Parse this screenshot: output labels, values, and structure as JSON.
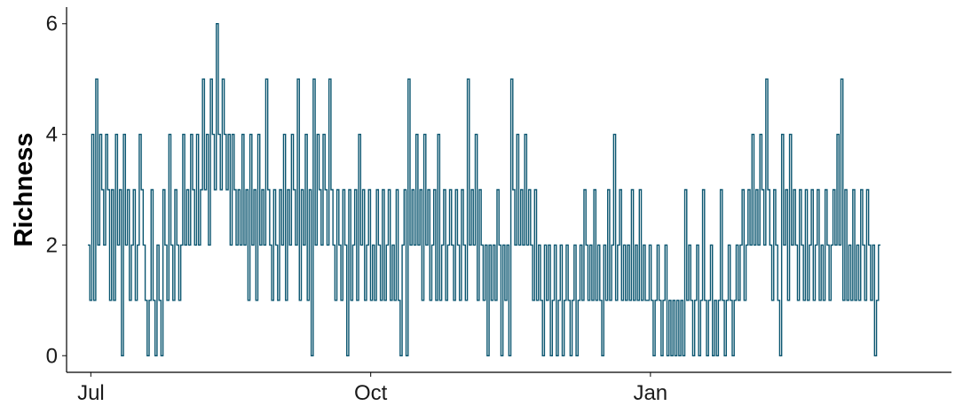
{
  "chart_data": {
    "type": "line",
    "title": "",
    "xlabel": "",
    "ylabel": "Richness",
    "ylim": [
      -0.3,
      6.3
    ],
    "y_ticks": [
      0,
      2,
      4,
      6
    ],
    "xlim": [
      "2020-06-23",
      "2021-04-10"
    ],
    "x_ticks": [
      {
        "label": "Jul",
        "date": "2020-07-01"
      },
      {
        "label": "Oct",
        "date": "2020-10-01"
      },
      {
        "label": "Jan",
        "date": "2021-01-01"
      }
    ],
    "grid": false,
    "legend": "none",
    "step": true,
    "line_color": "#0b5670",
    "start_date": "2020-06-30",
    "values": [
      2,
      1,
      4,
      1,
      5,
      2,
      4,
      3,
      2,
      4,
      3,
      1,
      3,
      1,
      4,
      2,
      3,
      0,
      4,
      2,
      3,
      1,
      2,
      3,
      1,
      2,
      4,
      3,
      2,
      1,
      0,
      1,
      3,
      1,
      0,
      2,
      1,
      0,
      3,
      2,
      1,
      4,
      2,
      1,
      3,
      2,
      1,
      2,
      4,
      2,
      3,
      2,
      4,
      3,
      2,
      4,
      2,
      3,
      5,
      3,
      4,
      2,
      5,
      4,
      3,
      6,
      4,
      3,
      5,
      4,
      3,
      4,
      2,
      4,
      3,
      2,
      3,
      2,
      4,
      2,
      3,
      1,
      4,
      2,
      3,
      1,
      4,
      2,
      3,
      2,
      5,
      3,
      2,
      1,
      3,
      2,
      1,
      3,
      2,
      4,
      1,
      3,
      2,
      4,
      3,
      2,
      5,
      1,
      3,
      2,
      4,
      1,
      3,
      0,
      5,
      2,
      4,
      3,
      2,
      4,
      3,
      2,
      5,
      3,
      2,
      1,
      3,
      2,
      1,
      3,
      2,
      0,
      3,
      1,
      2,
      3,
      1,
      4,
      2,
      3,
      1,
      2,
      3,
      1,
      2,
      1,
      3,
      2,
      1,
      3,
      1,
      2,
      3,
      1,
      2,
      1,
      3,
      1,
      0,
      2,
      3,
      0,
      5,
      2,
      3,
      2,
      4,
      2,
      3,
      1,
      4,
      2,
      3,
      1,
      2,
      3,
      1,
      4,
      1,
      2,
      3,
      1,
      2,
      3,
      2,
      1,
      3,
      2,
      1,
      3,
      2,
      1,
      5,
      2,
      3,
      2,
      4,
      1,
      3,
      2,
      1,
      2,
      0,
      2,
      1,
      2,
      1,
      3,
      2,
      0,
      2,
      1,
      2,
      0,
      5,
      3,
      2,
      4,
      2,
      3,
      2,
      4,
      2,
      3,
      2,
      1,
      3,
      1,
      2,
      1,
      0,
      2,
      1,
      2,
      0,
      1,
      2,
      0,
      1,
      2,
      0,
      1,
      2,
      1,
      0,
      1,
      2,
      0,
      1,
      2,
      1,
      3,
      2,
      1,
      2,
      1,
      3,
      1,
      2,
      1,
      0,
      2,
      1,
      3,
      1,
      2,
      4,
      1,
      2,
      3,
      1,
      2,
      1,
      2,
      1,
      3,
      1,
      2,
      1,
      3,
      1,
      2,
      1,
      1,
      2,
      1,
      0,
      1,
      2,
      1,
      0,
      1,
      2,
      0,
      1,
      0,
      1,
      0,
      1,
      0,
      1,
      0,
      3,
      1,
      2,
      1,
      0,
      1,
      2,
      0,
      1,
      3,
      1,
      0,
      1,
      2,
      0,
      1,
      0,
      1,
      3,
      1,
      0,
      1,
      2,
      1,
      0,
      1,
      2,
      1,
      2,
      3,
      1,
      2,
      3,
      2,
      4,
      2,
      3,
      2,
      4,
      3,
      2,
      5,
      3,
      2,
      1,
      3,
      2,
      1,
      0,
      4,
      2,
      3,
      1,
      4,
      2,
      3,
      2,
      1,
      3,
      2,
      1,
      3,
      1,
      2,
      3,
      1,
      2,
      3,
      1,
      2,
      1,
      3,
      2,
      1,
      2,
      3,
      2,
      4,
      2,
      5,
      1,
      3,
      1,
      2,
      1,
      3,
      1,
      2,
      1,
      3,
      2,
      1,
      3,
      2,
      1,
      2,
      0,
      1,
      2
    ]
  }
}
